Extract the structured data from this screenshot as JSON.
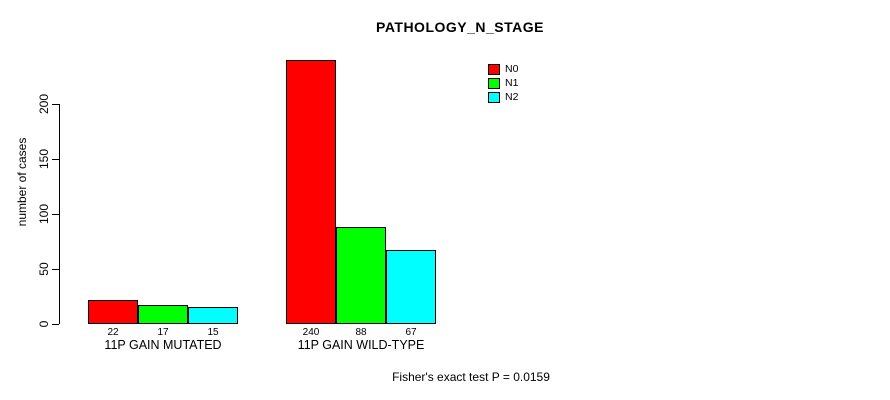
{
  "title": "PATHOLOGY_N_STAGE",
  "ylabel": "number of cases",
  "footer_note": "Fisher's exact test P = 0.0159",
  "chart_data": {
    "type": "bar",
    "title": "PATHOLOGY_N_STAGE",
    "xlabel": "",
    "ylabel": "number of cases",
    "categories": [
      "11P GAIN MUTATED",
      "11P GAIN WILD-TYPE"
    ],
    "series": [
      {
        "name": "N0",
        "color": "#ff0000",
        "values": [
          22,
          240
        ]
      },
      {
        "name": "N1",
        "color": "#00ff00",
        "values": [
          17,
          88
        ]
      },
      {
        "name": "N2",
        "color": "#00ffff",
        "values": [
          15,
          67
        ]
      }
    ],
    "bar_value_labels": [
      [
        22,
        17,
        15
      ],
      [
        240,
        88,
        67
      ]
    ],
    "yticks": [
      0,
      50,
      100,
      150,
      200
    ],
    "ylim": [
      0,
      240
    ],
    "grid": false,
    "legend_position": "top-right",
    "annotation": "Fisher's exact test P = 0.0159"
  }
}
